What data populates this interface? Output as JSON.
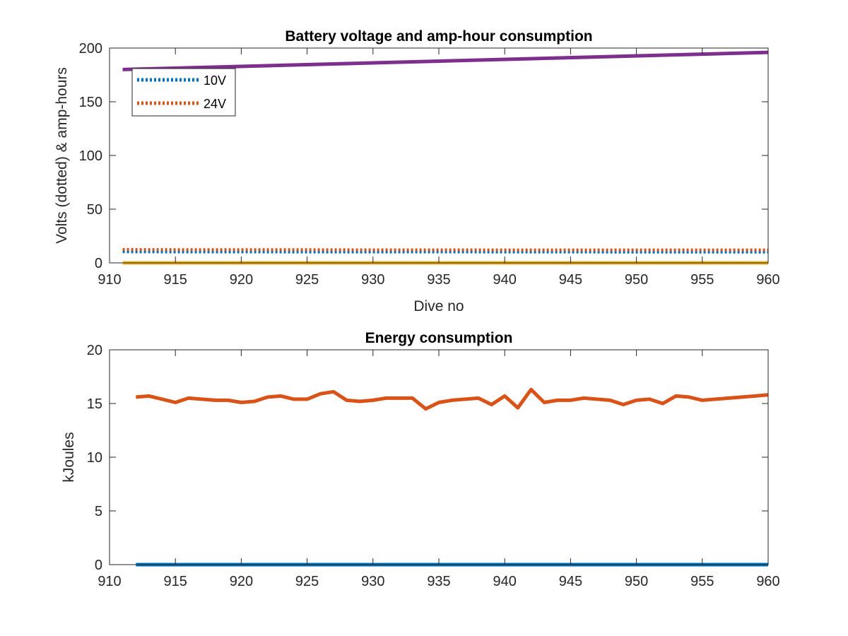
{
  "chart_data": [
    {
      "type": "line",
      "title": "Battery voltage and amp-hour consumption",
      "xlabel": "Dive no",
      "ylabel": "Volts (dotted) & amp-hours",
      "xlim": [
        910,
        960
      ],
      "ylim": [
        0,
        200
      ],
      "xticks": [
        910,
        915,
        920,
        925,
        930,
        935,
        940,
        945,
        950,
        955,
        960
      ],
      "yticks": [
        0,
        50,
        100,
        150,
        200
      ],
      "legend": {
        "placement": "top-left",
        "entries": [
          "10V",
          "24V"
        ]
      },
      "series": [
        {
          "name": "10V",
          "style": "dotted",
          "color": "#0072BD",
          "x": [
            911,
            915,
            920,
            925,
            930,
            935,
            940,
            945,
            950,
            955,
            960
          ],
          "y": [
            10.3,
            10.2,
            10.2,
            10.1,
            10.1,
            10.2,
            10.1,
            10.1,
            10.0,
            10.0,
            10.0
          ]
        },
        {
          "name": "24V",
          "style": "dotted",
          "color": "#D95319",
          "x": [
            911,
            915,
            920,
            925,
            930,
            935,
            940,
            945,
            950,
            955,
            960
          ],
          "y": [
            12.5,
            12.4,
            12.3,
            12.3,
            12.2,
            12.2,
            12.1,
            12.1,
            12.1,
            12.1,
            12.1
          ]
        },
        {
          "style": "solid",
          "color": "#EDB120",
          "x": [
            911,
            960
          ],
          "y": [
            0,
            0
          ]
        },
        {
          "style": "solid",
          "color": "#7E2F8E",
          "x": [
            911,
            960
          ],
          "y": [
            180,
            196
          ]
        }
      ]
    },
    {
      "type": "line",
      "title": "Energy consumption",
      "xlabel": "",
      "ylabel": "kJoules",
      "xlim": [
        910,
        960
      ],
      "ylim": [
        0,
        20
      ],
      "xticks": [
        910,
        915,
        920,
        925,
        930,
        935,
        940,
        945,
        950,
        955,
        960
      ],
      "yticks": [
        0,
        5,
        10,
        15,
        20
      ],
      "series": [
        {
          "style": "solid",
          "color": "#D95319",
          "x": [
            912,
            913,
            914,
            915,
            916,
            917,
            918,
            919,
            920,
            921,
            922,
            923,
            924,
            925,
            926,
            927,
            928,
            929,
            930,
            931,
            932,
            933,
            934,
            935,
            936,
            937,
            938,
            939,
            940,
            941,
            942,
            943,
            944,
            945,
            946,
            947,
            948,
            949,
            950,
            951,
            952,
            953,
            954,
            955,
            956,
            957,
            958,
            959,
            960
          ],
          "y": [
            15.6,
            15.7,
            15.4,
            15.1,
            15.5,
            15.4,
            15.3,
            15.3,
            15.1,
            15.2,
            15.6,
            15.7,
            15.4,
            15.4,
            15.9,
            16.1,
            15.3,
            15.2,
            15.3,
            15.5,
            15.5,
            15.5,
            14.5,
            15.1,
            15.3,
            15.4,
            15.5,
            14.9,
            15.7,
            14.6,
            16.3,
            15.1,
            15.3,
            15.3,
            15.5,
            15.4,
            15.3,
            14.9,
            15.3,
            15.4,
            15.0,
            15.7,
            15.6,
            15.3,
            15.4,
            15.5,
            15.6,
            15.7,
            15.8
          ]
        },
        {
          "style": "solid",
          "color": "#0072BD",
          "x": [
            912,
            960
          ],
          "y": [
            0,
            0
          ]
        }
      ]
    }
  ]
}
